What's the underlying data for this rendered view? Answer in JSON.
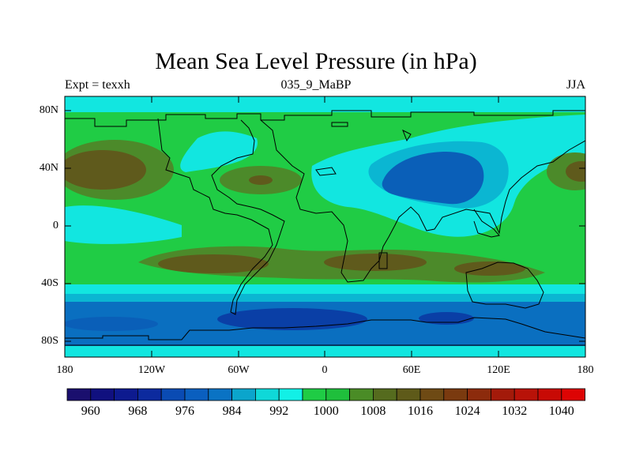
{
  "title": "Mean Sea Level Pressure (in hPa)",
  "subtitle_left": "Expt = texxh",
  "subtitle_center": "035_9_MaBP",
  "subtitle_right": "JJA",
  "lat_ticks": [
    "80N",
    "40N",
    "0",
    "40S",
    "80S"
  ],
  "lon_ticks": [
    "180",
    "120W",
    "60W",
    "0",
    "60E",
    "120E",
    "180"
  ],
  "colorbar": {
    "colors": [
      "#1a0f6e",
      "#10107f",
      "#0d1a8f",
      "#0c2a9e",
      "#0a4bb3",
      "#0a5fbf",
      "#0a73c4",
      "#0ba5cc",
      "#0fd8d8",
      "#12f0e6",
      "#1fcc45",
      "#1fbf3c",
      "#4a8c26",
      "#556b1e",
      "#5e5a19",
      "#6e4a14",
      "#7a3a0f",
      "#8c2b0c",
      "#a31a0a",
      "#b81208",
      "#c80a05",
      "#dd0404"
    ],
    "labels": [
      "960",
      "968",
      "976",
      "984",
      "992",
      "1000",
      "1008",
      "1016",
      "1024",
      "1032",
      "1040"
    ]
  },
  "legend_colors": {
    "low_deep": "#0a3fa6",
    "low_mid": "#0a6fc0",
    "low_light": "#0bb6d2",
    "mid_cyan": "#12e6e0",
    "mid_green": "#20cc45",
    "high_olive": "#4c8a2a",
    "high_brown": "#5f5a1c"
  }
}
